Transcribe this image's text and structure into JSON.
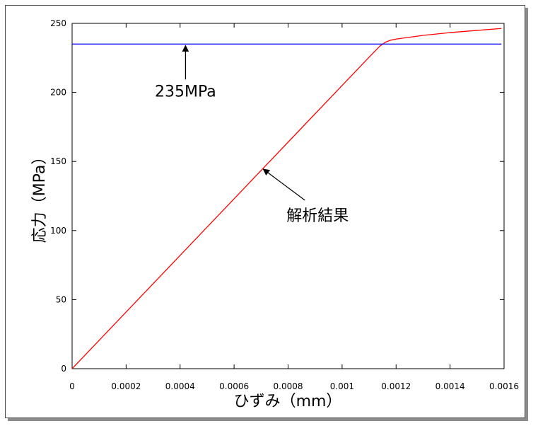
{
  "chart_data": {
    "type": "line",
    "title": "",
    "xlabel": "ひずみ（mm）",
    "ylabel": "応力（MPa）",
    "xlim": [
      0,
      0.0016
    ],
    "ylim": [
      0,
      250
    ],
    "x_ticks": [
      "0",
      "0.0002",
      "0.0004",
      "0.0006",
      "0.0008",
      "0.001",
      "0.0012",
      "0.0014",
      "0.0016"
    ],
    "y_ticks": [
      "0",
      "50",
      "100",
      "150",
      "200",
      "250"
    ],
    "grid": false,
    "legend": "none",
    "series": [
      {
        "color": "#ff0000",
        "x": [
          0,
          0.0002,
          0.0004,
          0.0006,
          0.0008,
          0.001,
          0.0011,
          0.00114,
          0.00116,
          0.00118,
          0.0012,
          0.0013,
          0.0014,
          0.0015,
          0.00159
        ],
        "y": [
          0,
          41,
          82,
          123,
          164,
          205,
          225.5,
          233.5,
          236.3,
          237.8,
          238.6,
          241.3,
          243.3,
          244.9,
          246.3
        ]
      },
      {
        "color": "#0000ff",
        "x": [
          0,
          0.00159
        ],
        "y": [
          235,
          235
        ]
      }
    ],
    "annotations": [
      {
        "text": "235MPa",
        "target_x": 0.00042,
        "target_y": 235
      },
      {
        "text": "解析結果",
        "target_x": 0.0007,
        "target_y": 146
      }
    ]
  }
}
